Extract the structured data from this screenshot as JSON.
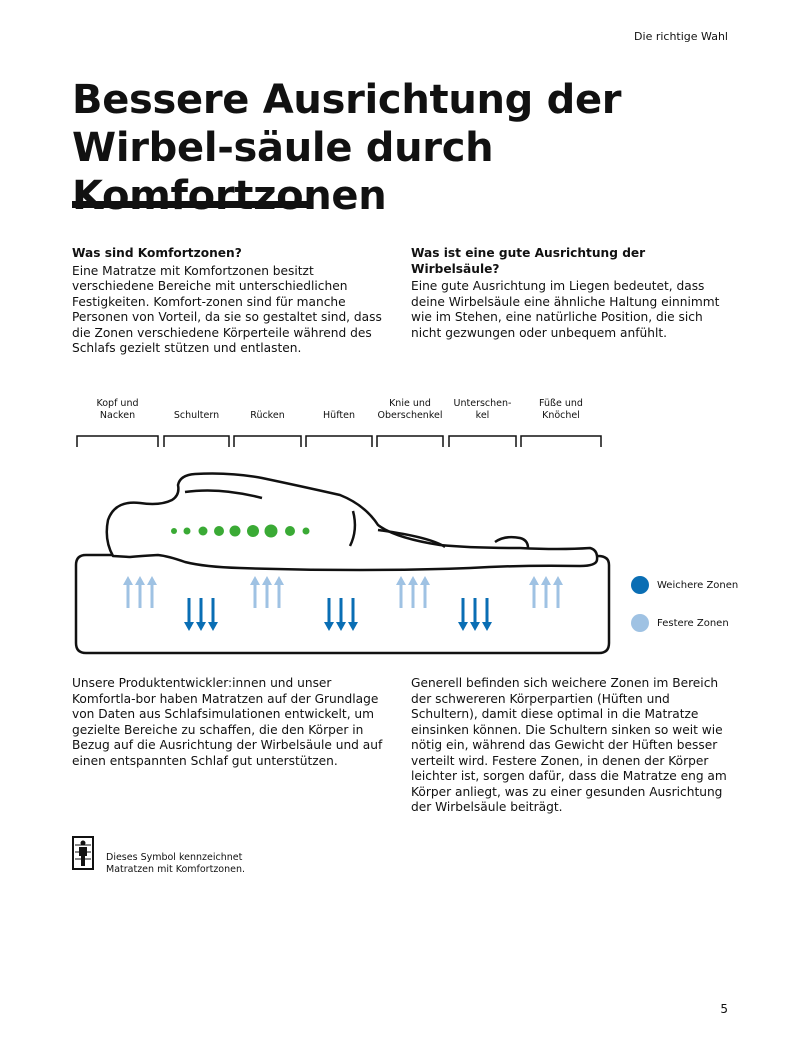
{
  "header": {
    "section": "Die richtige Wahl"
  },
  "title": "Bessere Ausrichtung der Wirbel-säule durch Komfortzonen",
  "left_intro": {
    "heading": "Was sind Komfortzonen?",
    "text": "Eine Matratze mit Komfortzonen besitzt verschiedene Bereiche mit unterschiedlichen Festigkeiten. Komfort-zonen sind für manche Personen von Vorteil, da sie so gestaltet sind, dass die Zonen verschiedene Körperteile während des Schlafs gezielt stützen und entlasten."
  },
  "right_intro": {
    "heading": "Was ist eine gute Ausrichtung der Wirbelsäule?",
    "text": "Eine gute Ausrichtung im Liegen bedeutet, dass deine Wirbelsäule eine ähnliche Haltung einnimmt wie im Stehen, eine natürliche Position, die sich nicht gezwungen oder unbequem anfühlt."
  },
  "diagram": {
    "zones": [
      "Kopf und Nacken",
      "Schultern",
      "Rücken",
      "Hüften",
      "Knie und Oberschenkel",
      "Unterschen-kel",
      "Füße und Knöchel"
    ],
    "zone_types": [
      "festere",
      "weichere",
      "festere",
      "weichere",
      "festere",
      "weichere",
      "festere"
    ],
    "legend": [
      {
        "label": "Weichere Zonen",
        "color": "#0a6eb4"
      },
      {
        "label": "Festere Zonen",
        "color": "#9fc2e3"
      }
    ],
    "spine_color": "#3aaa35"
  },
  "left_body": "Unsere Produktentwickler:innen und unser Komfortla-bor haben Matratzen auf der Grundlage von Daten aus Schlafsimulationen entwickelt, um gezielte Bereiche zu schaffen, die den Körper in Bezug auf die Ausrichtung der Wirbelsäule und auf einen entspannten Schlaf gut unterstützen.",
  "right_body": "Generell befinden sich weichere Zonen im Bereich der schwereren Körperpartien (Hüften und Schultern), damit diese optimal in die Matratze einsinken können. Die Schultern sinken so weit wie nötig ein, während das Gewicht der Hüften besser verteilt wird. Festere Zonen, in denen der Körper leichter ist, sorgen dafür, dass die Matratze eng am Körper anliegt, was zu einer gesunden Ausrichtung der Wirbelsäule beiträgt.",
  "symbol_note": "Dieses Symbol kennzeichnet Matratzen mit Komfortzonen.",
  "page_number": "5"
}
